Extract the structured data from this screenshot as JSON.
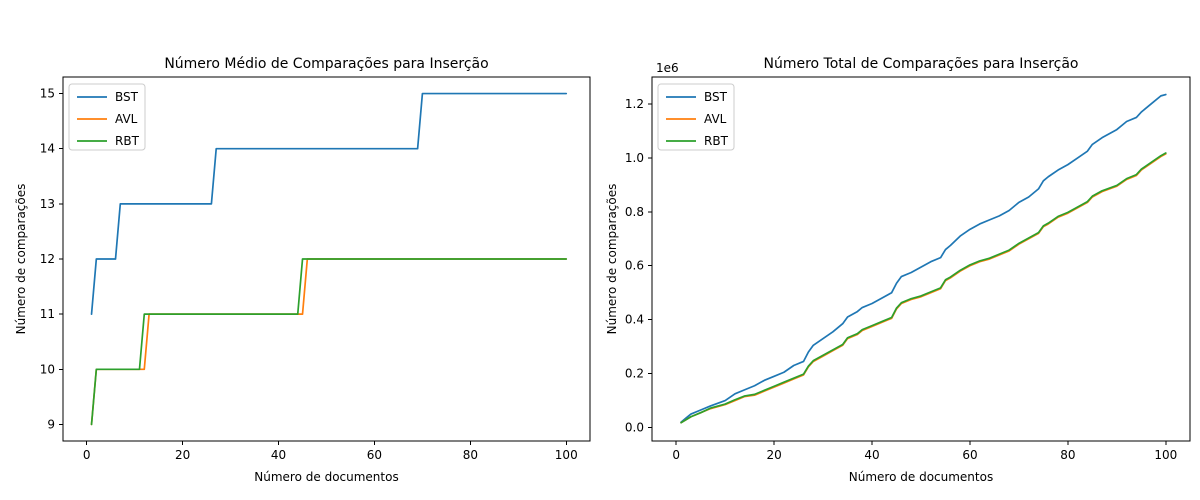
{
  "chart_data": [
    {
      "type": "line",
      "title": "Número Médio de Comparações para Inserção",
      "xlabel": "Número de documentos",
      "ylabel": "Número de comparações",
      "xlim": [
        -4.95,
        104.95
      ],
      "ylim": [
        8.7,
        15.3
      ],
      "xticks": [
        0,
        20,
        40,
        60,
        80,
        100
      ],
      "yticks": [
        9,
        10,
        11,
        12,
        13,
        14,
        15
      ],
      "legend": "upper-left",
      "grid": false,
      "series": [
        {
          "name": "BST",
          "color": "#1f77b4",
          "points": [
            [
              1,
              11
            ],
            [
              2,
              12
            ],
            [
              3,
              12
            ],
            [
              6,
              12
            ],
            [
              7,
              13
            ],
            [
              26,
              13
            ],
            [
              27,
              14
            ],
            [
              69,
              14
            ],
            [
              70,
              15
            ],
            [
              100,
              15
            ]
          ]
        },
        {
          "name": "AVL",
          "color": "#ff7f0e",
          "points": [
            [
              1,
              9
            ],
            [
              2,
              10
            ],
            [
              12,
              10
            ],
            [
              13,
              11
            ],
            [
              45,
              11
            ],
            [
              46,
              12
            ],
            [
              100,
              12
            ]
          ]
        },
        {
          "name": "RBT",
          "color": "#2ca02c",
          "points": [
            [
              1,
              9
            ],
            [
              2,
              10
            ],
            [
              11,
              10
            ],
            [
              12,
              11
            ],
            [
              44,
              11
            ],
            [
              45,
              12
            ],
            [
              100,
              12
            ]
          ]
        }
      ]
    },
    {
      "type": "line",
      "title": "Número Total de Comparações para Inserção",
      "xlabel": "Número de documentos",
      "ylabel": "Número de comparações",
      "offset_text": "1e6",
      "xlim": [
        -4.95,
        104.95
      ],
      "ylim": [
        -0.05,
        1.3
      ],
      "xticks": [
        0,
        20,
        40,
        60,
        80,
        100
      ],
      "yticks": [
        0.0,
        0.2,
        0.4,
        0.6,
        0.8,
        1.0,
        1.2
      ],
      "ytick_labels": [
        "0.0",
        "0.2",
        "0.4",
        "0.6",
        "0.8",
        "1.0",
        "1.2"
      ],
      "legend": "upper-left",
      "grid": false,
      "series": [
        {
          "name": "BST",
          "color": "#1f77b4",
          "points": [
            [
              1,
              0.02
            ],
            [
              2,
              0.035
            ],
            [
              3,
              0.05
            ],
            [
              5,
              0.065
            ],
            [
              7,
              0.08
            ],
            [
              10,
              0.1
            ],
            [
              12,
              0.125
            ],
            [
              14,
              0.14
            ],
            [
              16,
              0.155
            ],
            [
              18,
              0.175
            ],
            [
              20,
              0.19
            ],
            [
              22,
              0.205
            ],
            [
              24,
              0.23
            ],
            [
              26,
              0.245
            ],
            [
              27,
              0.28
            ],
            [
              28,
              0.305
            ],
            [
              30,
              0.33
            ],
            [
              32,
              0.355
            ],
            [
              34,
              0.385
            ],
            [
              35,
              0.41
            ],
            [
              37,
              0.43
            ],
            [
              38,
              0.445
            ],
            [
              40,
              0.46
            ],
            [
              42,
              0.48
            ],
            [
              44,
              0.5
            ],
            [
              45,
              0.535
            ],
            [
              46,
              0.56
            ],
            [
              48,
              0.575
            ],
            [
              50,
              0.595
            ],
            [
              52,
              0.615
            ],
            [
              54,
              0.63
            ],
            [
              55,
              0.66
            ],
            [
              56,
              0.675
            ],
            [
              58,
              0.71
            ],
            [
              60,
              0.735
            ],
            [
              62,
              0.755
            ],
            [
              64,
              0.77
            ],
            [
              66,
              0.785
            ],
            [
              68,
              0.805
            ],
            [
              70,
              0.835
            ],
            [
              72,
              0.855
            ],
            [
              74,
              0.885
            ],
            [
              75,
              0.915
            ],
            [
              76,
              0.93
            ],
            [
              78,
              0.955
            ],
            [
              80,
              0.975
            ],
            [
              82,
              1.0
            ],
            [
              84,
              1.025
            ],
            [
              85,
              1.05
            ],
            [
              87,
              1.075
            ],
            [
              90,
              1.105
            ],
            [
              92,
              1.135
            ],
            [
              94,
              1.15
            ],
            [
              95,
              1.17
            ],
            [
              97,
              1.2
            ],
            [
              99,
              1.23
            ],
            [
              100,
              1.235
            ]
          ]
        },
        {
          "name": "AVL",
          "color": "#ff7f0e",
          "points": [
            [
              1,
              0.018
            ],
            [
              3,
              0.04
            ],
            [
              5,
              0.055
            ],
            [
              7,
              0.07
            ],
            [
              10,
              0.085
            ],
            [
              12,
              0.1
            ],
            [
              14,
              0.115
            ],
            [
              16,
              0.12
            ],
            [
              18,
              0.135
            ],
            [
              20,
              0.15
            ],
            [
              22,
              0.165
            ],
            [
              24,
              0.18
            ],
            [
              26,
              0.195
            ],
            [
              27,
              0.225
            ],
            [
              28,
              0.245
            ],
            [
              30,
              0.265
            ],
            [
              32,
              0.285
            ],
            [
              34,
              0.305
            ],
            [
              35,
              0.33
            ],
            [
              37,
              0.345
            ],
            [
              38,
              0.36
            ],
            [
              40,
              0.375
            ],
            [
              42,
              0.39
            ],
            [
              44,
              0.405
            ],
            [
              45,
              0.44
            ],
            [
              46,
              0.46
            ],
            [
              48,
              0.475
            ],
            [
              50,
              0.485
            ],
            [
              52,
              0.5
            ],
            [
              54,
              0.515
            ],
            [
              55,
              0.545
            ],
            [
              56,
              0.555
            ],
            [
              58,
              0.58
            ],
            [
              60,
              0.6
            ],
            [
              62,
              0.615
            ],
            [
              64,
              0.625
            ],
            [
              66,
              0.64
            ],
            [
              68,
              0.655
            ],
            [
              70,
              0.68
            ],
            [
              72,
              0.7
            ],
            [
              74,
              0.72
            ],
            [
              75,
              0.745
            ],
            [
              76,
              0.755
            ],
            [
              78,
              0.78
            ],
            [
              80,
              0.795
            ],
            [
              82,
              0.815
            ],
            [
              84,
              0.835
            ],
            [
              85,
              0.855
            ],
            [
              87,
              0.875
            ],
            [
              90,
              0.895
            ],
            [
              92,
              0.92
            ],
            [
              94,
              0.935
            ],
            [
              95,
              0.955
            ],
            [
              97,
              0.98
            ],
            [
              99,
              1.005
            ],
            [
              100,
              1.015
            ]
          ]
        },
        {
          "name": "RBT",
          "color": "#2ca02c",
          "points": [
            [
              1,
              0.018
            ],
            [
              3,
              0.04
            ],
            [
              5,
              0.055
            ],
            [
              7,
              0.072
            ],
            [
              10,
              0.087
            ],
            [
              12,
              0.103
            ],
            [
              14,
              0.117
            ],
            [
              16,
              0.123
            ],
            [
              18,
              0.138
            ],
            [
              20,
              0.153
            ],
            [
              22,
              0.168
            ],
            [
              24,
              0.183
            ],
            [
              26,
              0.198
            ],
            [
              27,
              0.228
            ],
            [
              28,
              0.248
            ],
            [
              30,
              0.268
            ],
            [
              32,
              0.288
            ],
            [
              34,
              0.308
            ],
            [
              35,
              0.333
            ],
            [
              37,
              0.348
            ],
            [
              38,
              0.363
            ],
            [
              40,
              0.378
            ],
            [
              42,
              0.393
            ],
            [
              44,
              0.408
            ],
            [
              45,
              0.443
            ],
            [
              46,
              0.463
            ],
            [
              48,
              0.478
            ],
            [
              50,
              0.488
            ],
            [
              52,
              0.503
            ],
            [
              54,
              0.518
            ],
            [
              55,
              0.548
            ],
            [
              56,
              0.558
            ],
            [
              58,
              0.583
            ],
            [
              60,
              0.603
            ],
            [
              62,
              0.618
            ],
            [
              64,
              0.628
            ],
            [
              66,
              0.643
            ],
            [
              68,
              0.658
            ],
            [
              70,
              0.683
            ],
            [
              72,
              0.703
            ],
            [
              74,
              0.723
            ],
            [
              75,
              0.748
            ],
            [
              76,
              0.758
            ],
            [
              78,
              0.783
            ],
            [
              80,
              0.798
            ],
            [
              82,
              0.818
            ],
            [
              84,
              0.838
            ],
            [
              85,
              0.858
            ],
            [
              87,
              0.878
            ],
            [
              90,
              0.898
            ],
            [
              92,
              0.923
            ],
            [
              94,
              0.938
            ],
            [
              95,
              0.958
            ],
            [
              97,
              0.983
            ],
            [
              99,
              1.008
            ],
            [
              100,
              1.018
            ]
          ]
        }
      ]
    }
  ]
}
